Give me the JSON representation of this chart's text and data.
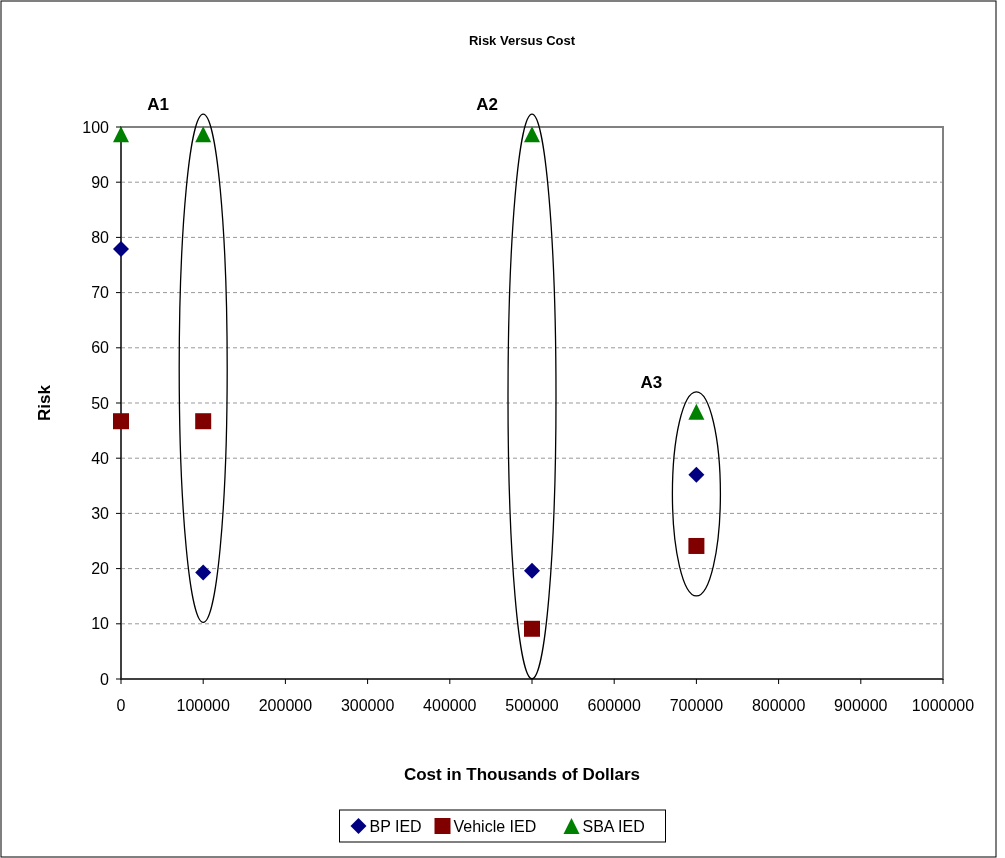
{
  "chart_data": {
    "type": "scatter",
    "title": "Risk Versus Cost",
    "xlabel": "Cost in Thousands of Dollars",
    "ylabel": "Risk",
    "x": [
      0,
      100000,
      500000,
      700000
    ],
    "series": [
      {
        "name": "BP IED",
        "color": "#000080",
        "marker": "diamond",
        "values": [
          77.9,
          19.3,
          19.6,
          37.0
        ]
      },
      {
        "name": "Vehicle IED",
        "color": "#800000",
        "marker": "square",
        "values": [
          46.7,
          46.7,
          9.1,
          24.1
        ]
      },
      {
        "name": "SBA IED",
        "color": "#008000",
        "marker": "triangle",
        "values": [
          98.7,
          98.7,
          98.7,
          48.4
        ]
      }
    ],
    "xlim": [
      0,
      1000000
    ],
    "xticks": [
      0,
      100000,
      200000,
      300000,
      400000,
      500000,
      600000,
      700000,
      800000,
      900000,
      1000000
    ],
    "ylim": [
      0,
      100
    ],
    "yticks": [
      0,
      10,
      20,
      30,
      40,
      50,
      60,
      70,
      80,
      90,
      100
    ],
    "grid": "y",
    "legend": "bottom",
    "annotations": [
      "A1",
      "A2",
      "A3"
    ]
  }
}
